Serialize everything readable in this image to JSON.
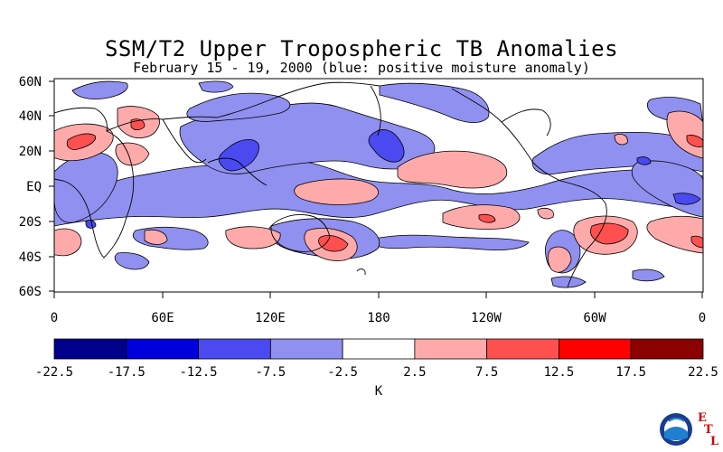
{
  "title": "SSM/T2 Upper Tropospheric TB Anomalies",
  "subtitle": "February 15 - 19, 2000 (blue: positive moisture anomaly)",
  "map": {
    "lat_labels": [
      "60N",
      "40N",
      "20N",
      "EQ",
      "20S",
      "40S",
      "60S"
    ],
    "lon_labels": [
      "0",
      "60E",
      "120E",
      "180",
      "120W",
      "60W",
      "0"
    ]
  },
  "colorbar": {
    "unit": "K",
    "tick_labels": [
      "-22.5",
      "-17.5",
      "-12.5",
      "-7.5",
      "-2.5",
      "2.5",
      "7.5",
      "12.5",
      "17.5",
      "22.5"
    ],
    "colors": [
      "#00008b",
      "#0000dd",
      "#4a4af0",
      "#9090f0",
      "#ffffff",
      "#ffaaaa",
      "#ff5050",
      "#ff0000",
      "#8b0000"
    ]
  },
  "logo": {
    "name": "NOAA",
    "lab": [
      "E",
      "T",
      "L"
    ]
  }
}
